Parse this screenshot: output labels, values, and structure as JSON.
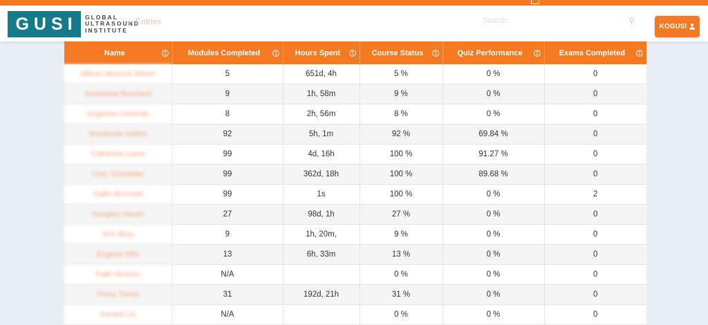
{
  "header": {
    "logo_short": "GUSI",
    "logo_line1": "GLOBAL",
    "logo_line2": "ULTRASOUND",
    "logo_line3": "INSTITUTE",
    "entries_label": "Entries",
    "search_placeholder": "Search...",
    "user_label": "KOGUSI"
  },
  "colors": {
    "accent": "#f47920",
    "logo": "#157a8a"
  },
  "table": {
    "columns": [
      "Name",
      "Modules Completed",
      "Hours Spent",
      "Course Status",
      "Quiz Performance",
      "Exams Completed"
    ],
    "rows": [
      [
        "Allison Akrouch Meuer",
        "5",
        "651d, 4h",
        "5 %",
        "0 %",
        "0"
      ],
      [
        "Anastasia Borchard",
        "9",
        "1h, 58m",
        "9 %",
        "0 %",
        "0"
      ],
      [
        "Angelina Carlsnäs",
        "8",
        "2h, 56m",
        "8 %",
        "0 %",
        "0"
      ],
      [
        "Brookside Hollen",
        "92",
        "5h, 1m",
        "92 %",
        "69.84 %",
        "0"
      ],
      [
        "Catherine Lewis",
        "99",
        "4d, 16h",
        "100 %",
        "91.27 %",
        "0"
      ],
      [
        "Cory Schneider",
        "99",
        "362d, 18h",
        "100 %",
        "89.68 %",
        "0"
      ],
      [
        "Dallin Brunnell",
        "99",
        "1s",
        "100 %",
        "0 %",
        "2"
      ],
      [
        "Douglas Haven",
        "27",
        "98d, 1h",
        "27 %",
        "0 %",
        "0"
      ],
      [
        "Eric Bisa",
        "9",
        "1h, 20m,",
        "9 %",
        "0 %",
        "0"
      ],
      [
        "Eugene Ellis",
        "13",
        "6h, 33m",
        "13 %",
        "0 %",
        "0"
      ],
      [
        "Faith Ibrahim",
        "N/A",
        "",
        "0 %",
        "0 %",
        "0"
      ],
      [
        "Fiona Tamel",
        "31",
        "192d, 21h",
        "31 %",
        "0 %",
        "0"
      ],
      [
        "Gerard Lin",
        "N/A",
        "",
        "0 %",
        "0 %",
        "0"
      ]
    ]
  }
}
